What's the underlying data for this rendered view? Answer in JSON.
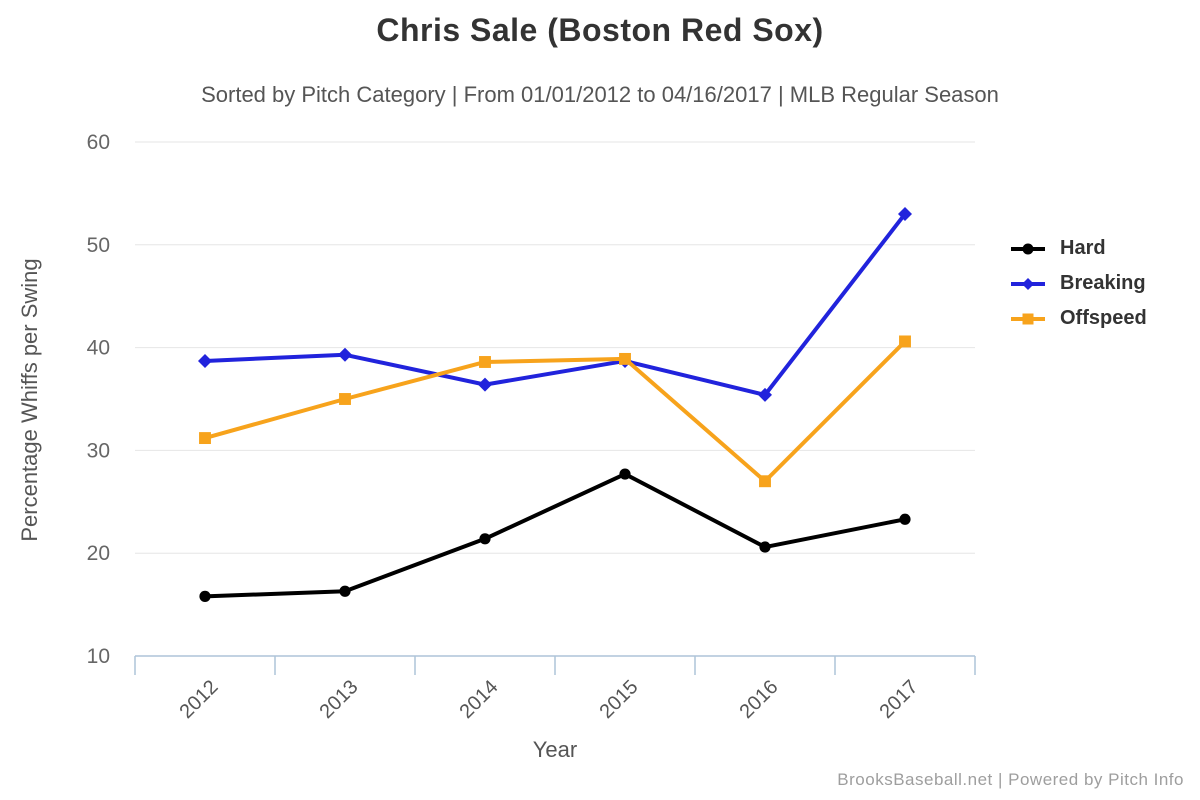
{
  "header": {
    "title": "Chris Sale (Boston Red Sox)",
    "subtitle": "Sorted by Pitch Category | From 01/01/2012 to 04/16/2017 | MLB Regular Season"
  },
  "footer": {
    "credit": "BrooksBaseball.net | Powered by Pitch Info"
  },
  "chart_data": {
    "type": "line",
    "title": "Chris Sale (Boston Red Sox)",
    "subtitle": "Sorted by Pitch Category | From 01/01/2012 to 04/16/2017 | MLB Regular Season",
    "xlabel": "Year",
    "ylabel": "Percentage Whiffs per Swing",
    "categories": [
      "2012",
      "2013",
      "2014",
      "2015",
      "2016",
      "2017"
    ],
    "yticks": [
      10,
      20,
      30,
      40,
      50,
      60
    ],
    "ylim": [
      10,
      60
    ],
    "grid": true,
    "legend_position": "right",
    "series": [
      {
        "name": "Hard",
        "color": "#000000",
        "marker": "circle",
        "values": [
          15.8,
          16.3,
          21.4,
          27.7,
          20.6,
          23.3
        ]
      },
      {
        "name": "Breaking",
        "color": "#2123dc",
        "marker": "diamond",
        "values": [
          38.7,
          39.3,
          36.4,
          38.7,
          35.4,
          53.0
        ]
      },
      {
        "name": "Offspeed",
        "color": "#f7a31c",
        "marker": "square",
        "values": [
          31.2,
          35.0,
          38.6,
          38.9,
          27.0,
          40.6
        ]
      }
    ],
    "colors": {
      "gridline": "#e6e6e6",
      "axis": "#aec4d8",
      "tick_label": "#666666",
      "axis_title": "#555555"
    }
  }
}
